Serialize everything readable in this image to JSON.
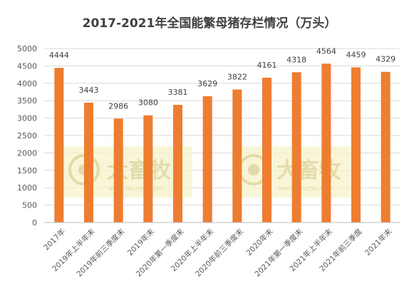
{
  "chart_data": {
    "type": "bar",
    "title": "2017-2021年全国能繁母猪存栏情况（万头）",
    "categories": [
      "2017年",
      "2019年上半年末",
      "2019年前三季度末",
      "2019年末",
      "2020年第一季度末",
      "2020年上半年末",
      "2020年前三季度末",
      "2020年末",
      "2021年第一季度末",
      "2021年上半年末",
      "2021年前三季度",
      "2021年末"
    ],
    "values": [
      4444,
      3443,
      2986,
      3080,
      3381,
      3629,
      3822,
      4161,
      4318,
      4564,
      4459,
      4329
    ],
    "ylim": [
      0,
      5000
    ],
    "yticks": [
      0,
      500,
      1000,
      1500,
      2000,
      2500,
      3000,
      3500,
      4000,
      4500,
      5000
    ],
    "bar_color": "#ED7D31",
    "grid": true,
    "watermark": {
      "text": "大畜牧",
      "sub": "www.dxumu.com"
    }
  }
}
